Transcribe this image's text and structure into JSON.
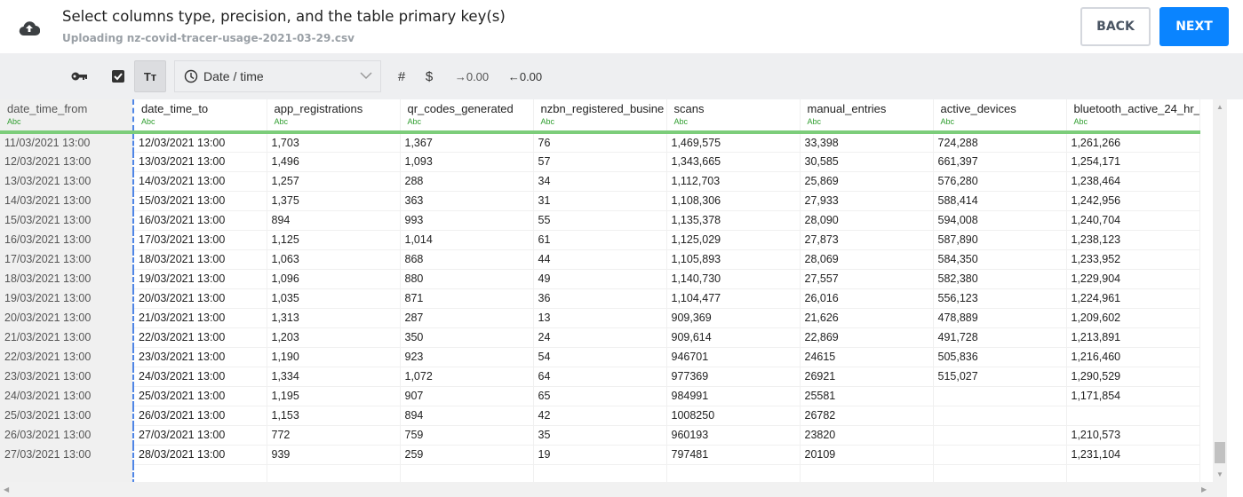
{
  "header": {
    "title": "Select columns type, precision, and the table primary key(s)",
    "subtitle": "Uploading nz-covid-tracer-usage-2021-03-29.csv",
    "back_label": "BACK",
    "next_label": "NEXT",
    "icon": "cloud-upload-icon"
  },
  "toolbar": {
    "type_select": "Date / time",
    "hash": "#",
    "dollar": "$",
    "increase_decimals": "→0.00",
    "decrease_decimals": "←0.00",
    "text_type": "Tт"
  },
  "colors": {
    "accent": "#0a84ff",
    "type_bar": "#7ccd7a",
    "key_border": "#4f86e6"
  },
  "table": {
    "columns": [
      {
        "name": "date_time_from",
        "type": "Abc"
      },
      {
        "name": "date_time_to",
        "type": "Abc"
      },
      {
        "name": "app_registrations",
        "type": "Abc"
      },
      {
        "name": "qr_codes_generated",
        "type": "Abc"
      },
      {
        "name": "nzbn_registered_busine",
        "type": "Abc"
      },
      {
        "name": "scans",
        "type": "Abc"
      },
      {
        "name": "manual_entries",
        "type": "Abc"
      },
      {
        "name": "active_devices",
        "type": "Abc"
      },
      {
        "name": "bluetooth_active_24_hr_",
        "type": "Abc"
      }
    ],
    "rows": [
      [
        "11/03/2021 13:00",
        "12/03/2021 13:00",
        "1,703",
        "1,367",
        "76",
        "1,469,575",
        "33,398",
        "724,288",
        "1,261,266"
      ],
      [
        "12/03/2021 13:00",
        "13/03/2021 13:00",
        "1,496",
        "1,093",
        "57",
        "1,343,665",
        "30,585",
        "661,397",
        "1,254,171"
      ],
      [
        "13/03/2021 13:00",
        "14/03/2021 13:00",
        "1,257",
        "288",
        "34",
        "1,112,703",
        "25,869",
        "576,280",
        "1,238,464"
      ],
      [
        "14/03/2021 13:00",
        "15/03/2021 13:00",
        "1,375",
        "363",
        "31",
        "1,108,306",
        "27,933",
        "588,414",
        "1,242,956"
      ],
      [
        "15/03/2021 13:00",
        "16/03/2021 13:00",
        "894",
        "993",
        "55",
        "1,135,378",
        "28,090",
        "594,008",
        "1,240,704"
      ],
      [
        "16/03/2021 13:00",
        "17/03/2021 13:00",
        "1,125",
        "1,014",
        "61",
        "1,125,029",
        "27,873",
        "587,890",
        "1,238,123"
      ],
      [
        "17/03/2021 13:00",
        "18/03/2021 13:00",
        "1,063",
        "868",
        "44",
        "1,105,893",
        "28,069",
        "584,350",
        "1,233,952"
      ],
      [
        "18/03/2021 13:00",
        "19/03/2021 13:00",
        "1,096",
        "880",
        "49",
        "1,140,730",
        "27,557",
        "582,380",
        "1,229,904"
      ],
      [
        "19/03/2021 13:00",
        "20/03/2021 13:00",
        "1,035",
        "871",
        "36",
        "1,104,477",
        "26,016",
        "556,123",
        "1,224,961"
      ],
      [
        "20/03/2021 13:00",
        "21/03/2021 13:00",
        "1,313",
        "287",
        "13",
        "909,369",
        "21,626",
        "478,889",
        "1,209,602"
      ],
      [
        "21/03/2021 13:00",
        "22/03/2021 13:00",
        "1,203",
        "350",
        "24",
        "909,614",
        "22,869",
        "491,728",
        "1,213,891"
      ],
      [
        "22/03/2021 13:00",
        "23/03/2021 13:00",
        "1,190",
        "923",
        "54",
        "946701",
        "24615",
        "505,836",
        "1,216,460"
      ],
      [
        "23/03/2021 13:00",
        "24/03/2021 13:00",
        "1,334",
        "1,072",
        "64",
        "977369",
        "26921",
        "515,027",
        "1,290,529"
      ],
      [
        "24/03/2021 13:00",
        "25/03/2021 13:00",
        "1,195",
        "907",
        "65",
        "984991",
        "25581",
        "",
        "1,171,854"
      ],
      [
        "25/03/2021 13:00",
        "26/03/2021 13:00",
        "1,153",
        "894",
        "42",
        "1008250",
        "26782",
        "",
        ""
      ],
      [
        "26/03/2021 13:00",
        "27/03/2021 13:00",
        "772",
        "759",
        "35",
        "960193",
        "23820",
        "",
        "1,210,573"
      ],
      [
        "27/03/2021 13:00",
        "28/03/2021 13:00",
        "939",
        "259",
        "19",
        "797481",
        "20109",
        "",
        "1,231,104"
      ],
      [
        "",
        "",
        "",
        "",
        "",
        "",
        "",
        "",
        ""
      ]
    ]
  }
}
